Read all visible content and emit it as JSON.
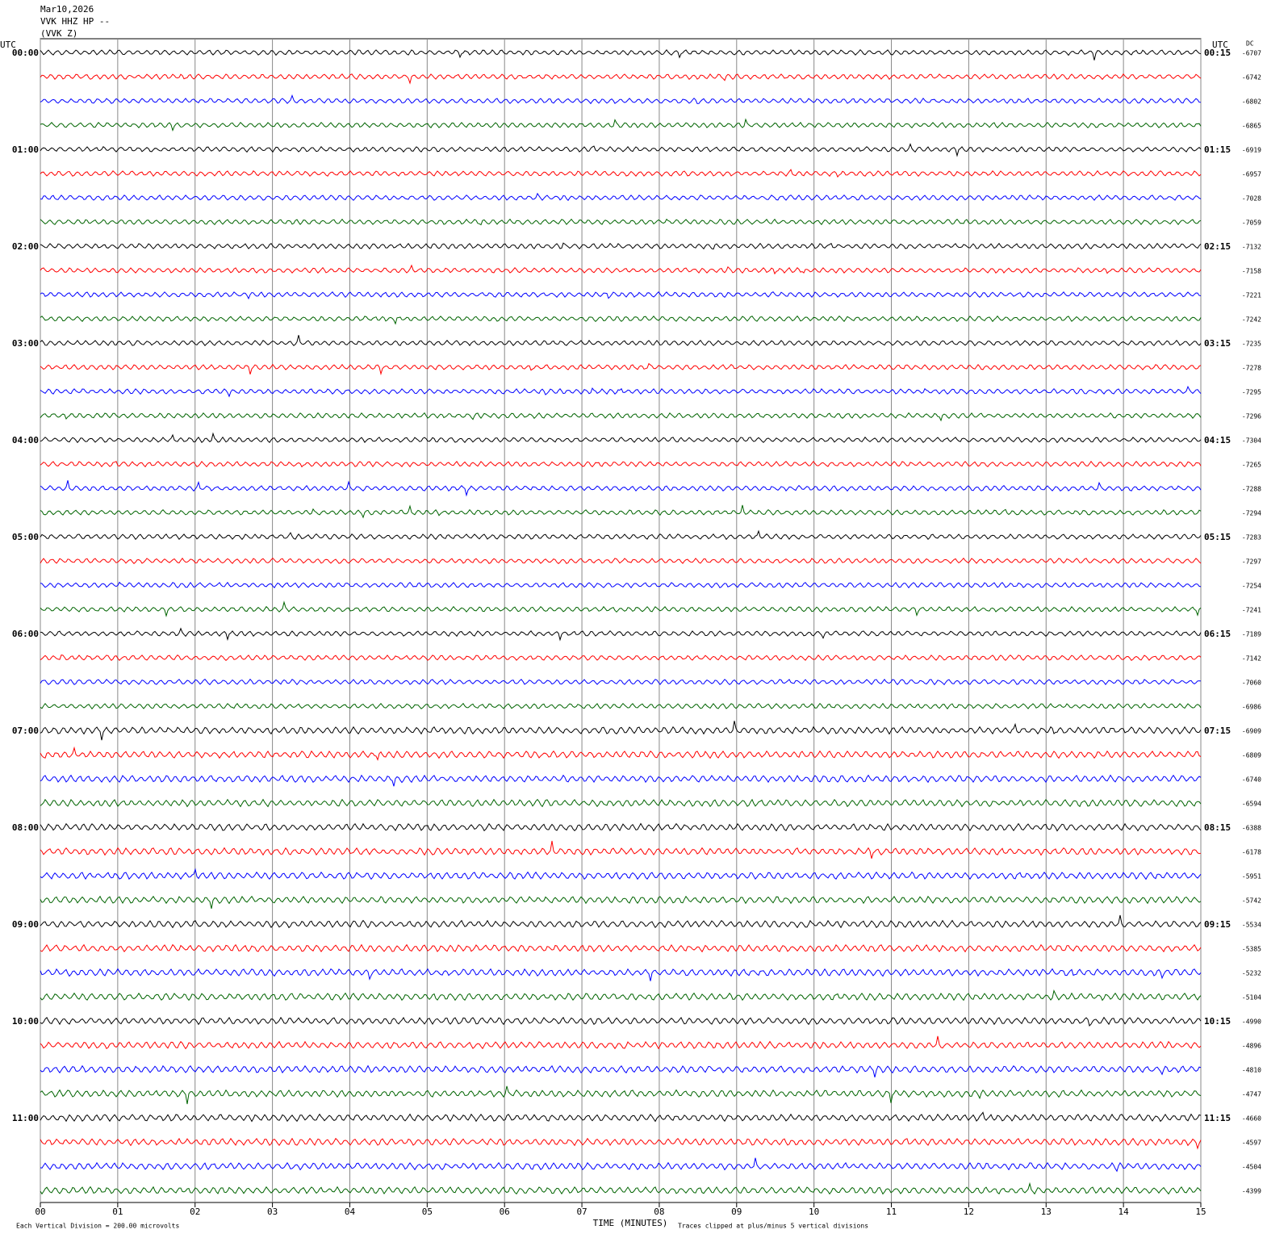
{
  "header": {
    "lines": [
      "Mar10,2026",
      "VVK HHZ HP --",
      "(VVK Z)"
    ]
  },
  "left_label": "UTC",
  "right_label": "UTC",
  "dc_label": "DC",
  "left_times": [
    "00:00",
    "01:00",
    "02:00",
    "03:00",
    "04:00",
    "05:00",
    "06:00",
    "07:00",
    "08:00",
    "09:00",
    "10:00",
    "11:00"
  ],
  "right_times": [
    "00:15",
    "01:15",
    "02:15",
    "03:15",
    "04:15",
    "05:15",
    "06:15",
    "07:15",
    "08:15",
    "09:15",
    "10:15",
    "11:15"
  ],
  "dc_offsets": [
    -6707,
    -6742,
    -6802,
    -6865,
    -6919,
    -6957,
    -7028,
    -7059,
    -7132,
    -7158,
    -7221,
    -7242,
    -7235,
    -7278,
    -7295,
    -7296,
    -7304,
    -7265,
    -7288,
    -7294,
    -7283,
    -7297,
    -7254,
    -7241,
    -7189,
    -7142,
    -7060,
    -6986,
    -6909,
    -6809,
    -6740,
    -6594,
    -6388,
    -6178,
    -5951,
    -5742,
    -5534,
    -5385,
    -5232,
    -5104,
    -4990,
    -4896,
    -4810,
    -4747,
    -4660,
    -4597,
    -4504,
    -4399
  ],
  "trace_colors": [
    "#000000",
    "#ff0000",
    "#0000ff",
    "#006400"
  ],
  "x_axis": {
    "label": "TIME (MINUTES)",
    "xlim": [
      0,
      15
    ],
    "xticks": [
      {
        "value": 0,
        "label": "00"
      },
      {
        "value": 1,
        "label": "01"
      },
      {
        "value": 2,
        "label": "02"
      },
      {
        "value": 3,
        "label": "03"
      },
      {
        "value": 4,
        "label": "04"
      },
      {
        "value": 5,
        "label": "05"
      },
      {
        "value": 6,
        "label": "06"
      },
      {
        "value": 7,
        "label": "07"
      },
      {
        "value": 8,
        "label": "08"
      },
      {
        "value": 9,
        "label": "09"
      },
      10,
      11,
      12,
      13,
      14,
      15
    ]
  },
  "footer": {
    "scale_note": "Each Vertical Division =  200.00 microvolts",
    "clip_note": "Traces clipped at plus/minus 5 vertical divisions"
  }
}
